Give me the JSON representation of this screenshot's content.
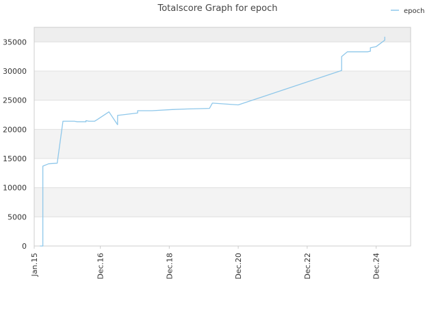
{
  "chart_data": {
    "type": "line",
    "title": "Totalscore Graph for epoch",
    "xlabel": "",
    "ylabel": "",
    "x_tick_labels": [
      "Jan.15",
      "Dec.16",
      "Dec.18",
      "Dec.20",
      "Dec.22",
      "Dec.24"
    ],
    "x_tick_dates": [
      "2015-01",
      "2016-12",
      "2018-12",
      "2020-12",
      "2022-12",
      "2024-12"
    ],
    "xlim": [
      "2015-01",
      "2025-12"
    ],
    "ylim": [
      0,
      37500
    ],
    "yticks": [
      0,
      5000,
      10000,
      15000,
      20000,
      25000,
      30000,
      35000
    ],
    "grid": true,
    "legend_position": "top-right",
    "colors": {
      "series": "#8ec7ea",
      "band": "#f3f3f3",
      "grid": "#e0e0e0",
      "axis": "#cccccc"
    },
    "series": [
      {
        "name": "epoch",
        "points": [
          [
            "2015-03",
            0
          ],
          [
            "2015-04",
            0
          ],
          [
            "2015-04",
            4000
          ],
          [
            "2015-04",
            13700
          ],
          [
            "2015-06",
            14100
          ],
          [
            "2015-09",
            14200
          ],
          [
            "2015-11",
            21400
          ],
          [
            "2016-03",
            21400
          ],
          [
            "2016-04",
            21300
          ],
          [
            "2016-07",
            21300
          ],
          [
            "2016-07",
            21500
          ],
          [
            "2016-08",
            21400
          ],
          [
            "2016-10",
            21400
          ],
          [
            "2016-11",
            21700
          ],
          [
            "2017-03",
            23000
          ],
          [
            "2017-06",
            20800
          ],
          [
            "2017-06",
            22400
          ],
          [
            "2018-01",
            22800
          ],
          [
            "2018-01",
            23200
          ],
          [
            "2018-06",
            23200
          ],
          [
            "2019-01",
            23400
          ],
          [
            "2019-06",
            23500
          ],
          [
            "2020-02",
            23600
          ],
          [
            "2020-03",
            24500
          ],
          [
            "2020-12",
            24200
          ],
          [
            "2023-12",
            30100
          ],
          [
            "2023-12",
            32500
          ],
          [
            "2024-02",
            33300
          ],
          [
            "2024-09",
            33300
          ],
          [
            "2024-10",
            33400
          ],
          [
            "2024-10",
            34000
          ],
          [
            "2024-12",
            34200
          ],
          [
            "2025-03",
            35300
          ],
          [
            "2025-03",
            35900
          ]
        ]
      }
    ]
  }
}
